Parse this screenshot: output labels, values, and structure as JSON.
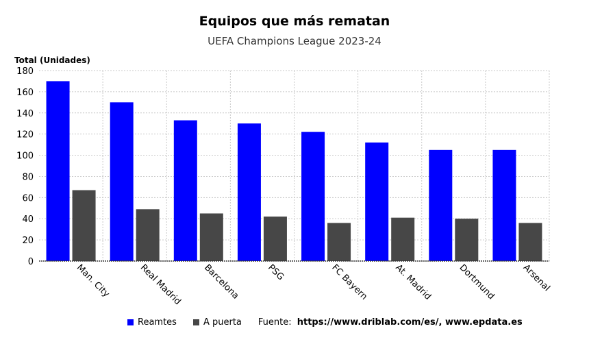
{
  "chart_data": {
    "type": "bar",
    "title": "Equipos que más rematan",
    "subtitle": "UEFA Champions League 2023-24",
    "ylabel": "Total (Unidades)",
    "xlabel": "",
    "ylim": [
      0,
      180
    ],
    "yticks": [
      0,
      20,
      40,
      60,
      80,
      100,
      120,
      140,
      160,
      180
    ],
    "grid": true,
    "categories": [
      "Man. City",
      "Real Madrid",
      "Barcelona",
      "PSG",
      "FC Bayern",
      "At. Madrid",
      "Dortmund",
      "Arsenal"
    ],
    "series": [
      {
        "name": "Reamtes",
        "color": "#0000ff",
        "values": [
          170,
          150,
          133,
          130,
          122,
          112,
          105,
          105
        ]
      },
      {
        "name": "A puerta",
        "color": "#474747",
        "values": [
          67,
          49,
          45,
          42,
          36,
          41,
          40,
          36
        ]
      }
    ],
    "legend_position": "bottom",
    "source_label": "Fuente:",
    "source_text": "https://www.driblab.com/es/, www.epdata.es"
  }
}
